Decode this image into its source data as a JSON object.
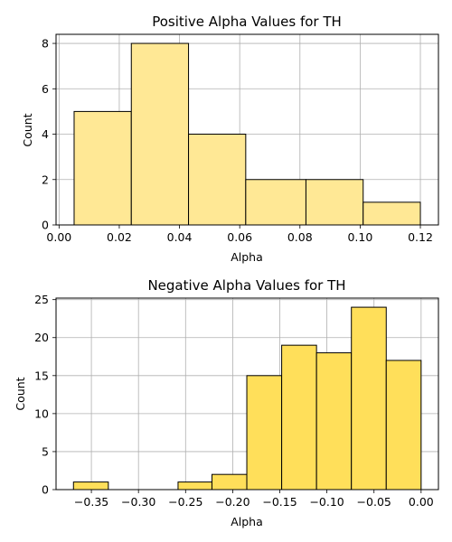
{
  "chart_data": [
    {
      "type": "bar",
      "title": "Positive Alpha Values for TH",
      "xlabel": "Alpha",
      "ylabel": "Count",
      "color": "#ffe895",
      "bins": [
        {
          "start": 0.005,
          "end": 0.024,
          "count": 5
        },
        {
          "start": 0.024,
          "end": 0.043,
          "count": 8
        },
        {
          "start": 0.043,
          "end": 0.062,
          "count": 4
        },
        {
          "start": 0.062,
          "end": 0.082,
          "count": 2
        },
        {
          "start": 0.082,
          "end": 0.101,
          "count": 2
        },
        {
          "start": 0.101,
          "end": 0.12,
          "count": 1
        }
      ],
      "xlim": [
        -0.001,
        0.126
      ],
      "ylim": [
        0,
        8.4
      ],
      "xticks": [
        0.0,
        0.02,
        0.04,
        0.06,
        0.08,
        0.1,
        0.12
      ],
      "xtick_labels": [
        "0.00",
        "0.02",
        "0.04",
        "0.06",
        "0.08",
        "0.10",
        "0.12"
      ],
      "yticks": [
        0,
        2,
        4,
        6,
        8
      ],
      "ytick_labels": [
        "0",
        "2",
        "4",
        "6",
        "8"
      ],
      "grid": true
    },
    {
      "type": "bar",
      "title": "Negative Alpha Values for TH",
      "xlabel": "Alpha",
      "ylabel": "Count",
      "color": "#ffdf5a",
      "bins": [
        {
          "start": -0.369,
          "end": -0.332,
          "count": 1
        },
        {
          "start": -0.332,
          "end": -0.295,
          "count": 0
        },
        {
          "start": -0.295,
          "end": -0.258,
          "count": 0
        },
        {
          "start": -0.258,
          "end": -0.222,
          "count": 1
        },
        {
          "start": -0.222,
          "end": -0.185,
          "count": 2
        },
        {
          "start": -0.185,
          "end": -0.148,
          "count": 15
        },
        {
          "start": -0.148,
          "end": -0.111,
          "count": 19
        },
        {
          "start": -0.111,
          "end": -0.074,
          "count": 18
        },
        {
          "start": -0.074,
          "end": -0.037,
          "count": 24
        },
        {
          "start": -0.037,
          "end": 0.0,
          "count": 17
        }
      ],
      "xlim": [
        -0.3875,
        0.0184
      ],
      "ylim": [
        0,
        25.2
      ],
      "xticks": [
        -0.35,
        -0.3,
        -0.25,
        -0.2,
        -0.15,
        -0.1,
        -0.05,
        0.0
      ],
      "xtick_labels": [
        "−0.35",
        "−0.30",
        "−0.25",
        "−0.20",
        "−0.15",
        "−0.10",
        "−0.05",
        "0.00"
      ],
      "yticks": [
        0,
        5,
        10,
        15,
        20,
        25
      ],
      "ytick_labels": [
        "0",
        "5",
        "10",
        "15",
        "20",
        "25"
      ],
      "grid": true
    }
  ]
}
